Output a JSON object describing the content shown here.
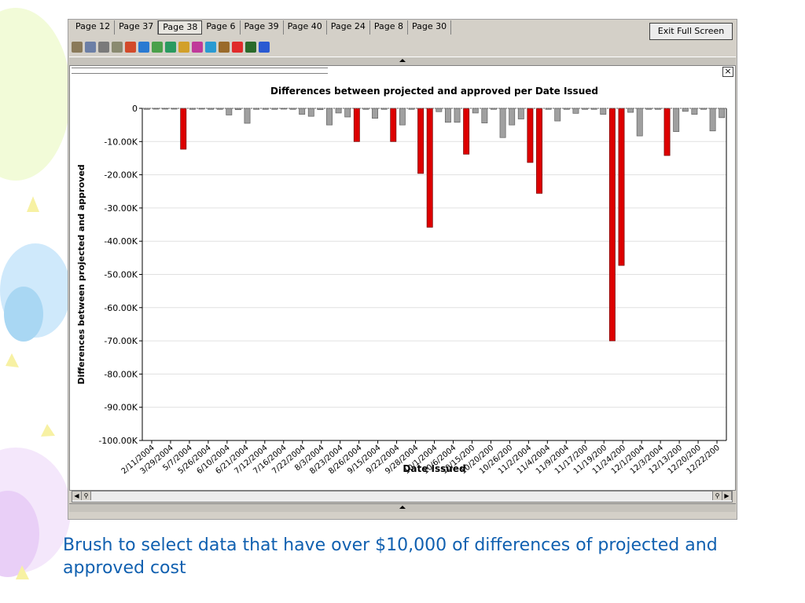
{
  "tabs": [
    "Page 12",
    "Page 37",
    "Page 38",
    "Page 6",
    "Page 39",
    "Page 40",
    "Page 24",
    "Page 8",
    "Page 30"
  ],
  "active_tab": "Page 38",
  "exit_button": "Exit Full Screen",
  "close_glyph": "×",
  "caption": "Brush to select data that have over $10,000 of differences of projected and approved cost",
  "colors": {
    "highlight": "#dd0000",
    "normal": "#a0a0a0",
    "caption": "#1060b0"
  },
  "toolbar_icons": [
    "table-icon",
    "list-icon",
    "grid-icon",
    "text-icon",
    "pie-chart-icon",
    "bar-chart-icon",
    "line-chart-icon",
    "area-chart-icon",
    "scatter-chart-icon",
    "stacked-bar-icon",
    "histogram-icon",
    "map-icon",
    "heat-map-icon",
    "treemap-icon",
    "globe-icon"
  ],
  "chart_data": {
    "type": "bar",
    "title": "Differences between projected and approved per  Date  Issued",
    "xlabel": "Date  Issued",
    "ylabel": "Differences between projected and approved",
    "ylim": [
      -100000,
      0
    ],
    "yticks": [
      0,
      -10000,
      -20000,
      -30000,
      -40000,
      -50000,
      -60000,
      -70000,
      -80000,
      -90000,
      -100000
    ],
    "ytick_labels": [
      "0",
      "-10.00K",
      "-20.00K",
      "-30.00K",
      "-40.00K",
      "-50.00K",
      "-60.00K",
      "-70.00K",
      "-80.00K",
      "-90.00K",
      "-100.00K"
    ],
    "xtick_labels": [
      "2/11/2004",
      "3/29/2004",
      "5/7/2004",
      "5/26/2004",
      "6/10/2004",
      "6/21/2004",
      "7/12/2004",
      "7/16/2004",
      "7/22/2004",
      "8/3/2004",
      "8/23/2004",
      "8/26/2004",
      "9/15/2004",
      "9/22/2004",
      "9/28/2004",
      "10/1/2004",
      "10/6/2004",
      "10/15/200",
      "10/20/200",
      "10/26/200",
      "11/2/2004",
      "11/4/2004",
      "11/9/2004",
      "11/17/200",
      "11/19/200",
      "11/24/200",
      "12/1/2004",
      "12/3/2004",
      "12/13/200",
      "12/20/200",
      "12/22/200"
    ],
    "highlight_threshold": -10000,
    "values": [
      -300,
      -200,
      -200,
      -200,
      -12300,
      -300,
      -200,
      -300,
      -300,
      -2000,
      -400,
      -4500,
      -300,
      -300,
      -300,
      -200,
      -300,
      -1800,
      -2400,
      -400,
      -5000,
      -1400,
      -2600,
      -10000,
      -300,
      -3000,
      -300,
      -10000,
      -5000,
      -300,
      -19600,
      -35800,
      -1000,
      -4200,
      -4200,
      -13800,
      -1400,
      -4400,
      -300,
      -8800,
      -5000,
      -3200,
      -16300,
      -25600,
      -300,
      -3800,
      -300,
      -1500,
      -300,
      -300,
      -1800,
      -70000,
      -47300,
      -1200,
      -8300,
      -300,
      -300,
      -14200,
      -7000,
      -900,
      -1800,
      -300,
      -6800,
      -2800
    ]
  }
}
